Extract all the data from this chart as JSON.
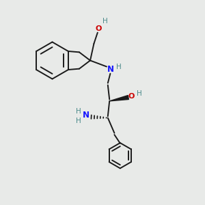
{
  "background_color": "#e8eae8",
  "bond_color": "#1a1a1a",
  "bond_width": 1.4,
  "N_color": "#1414ff",
  "O_color": "#cc0000",
  "H_color": "#4a8a8a",
  "text_fontsize": 7.5,
  "figsize": [
    3.0,
    3.0
  ],
  "dpi": 100,
  "xlim": [
    0,
    10
  ],
  "ylim": [
    0,
    10
  ]
}
